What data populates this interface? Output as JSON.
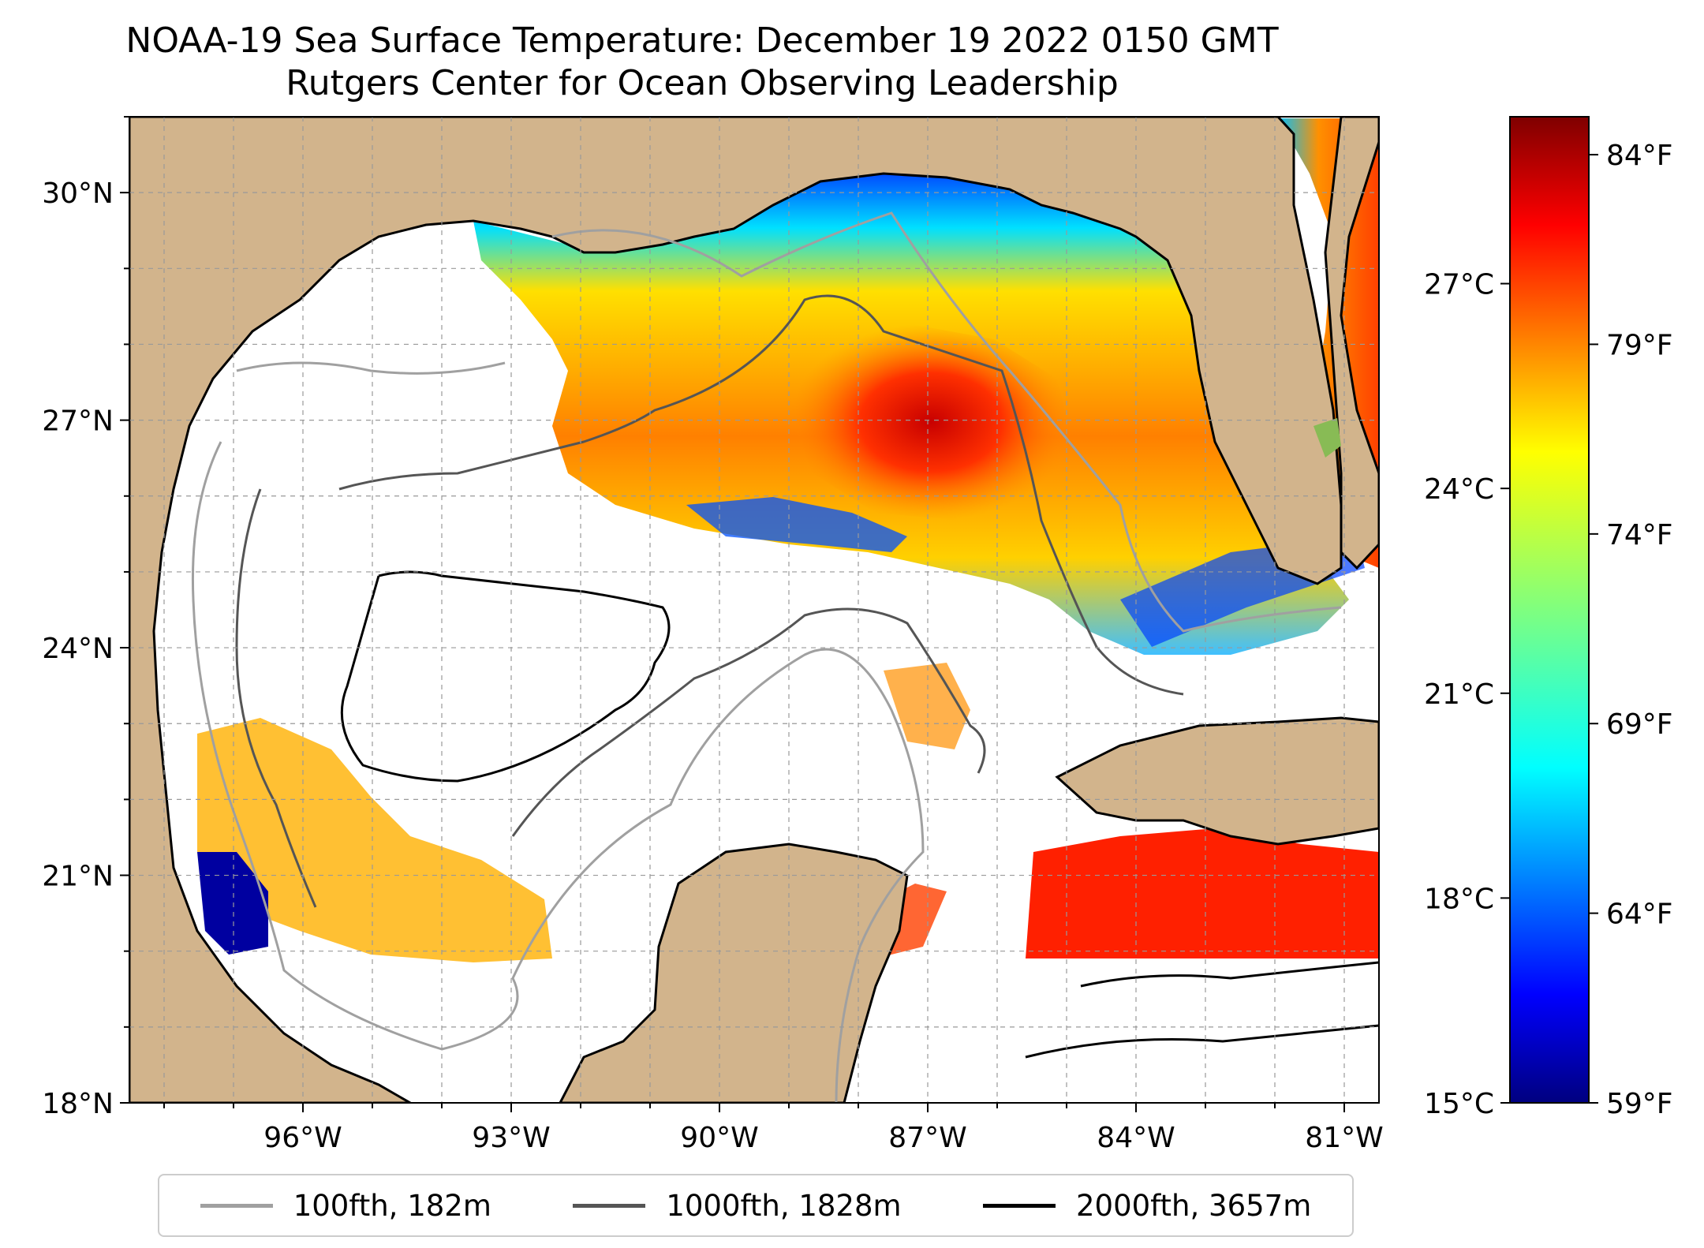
{
  "title_line1": "NOAA-19 Sea Surface Temperature: December 19 2022 0150 GMT",
  "title_line2": "Rutgers Center for Ocean Observing Leadership",
  "map": {
    "lon_range": [
      -98.5,
      -80.5
    ],
    "lat_range": [
      18,
      31
    ],
    "x_ticks": [
      {
        "lon": -96,
        "label": "96°W"
      },
      {
        "lon": -93,
        "label": "93°W"
      },
      {
        "lon": -90,
        "label": "90°W"
      },
      {
        "lon": -87,
        "label": "87°W"
      },
      {
        "lon": -84,
        "label": "84°W"
      },
      {
        "lon": -81,
        "label": "81°W"
      }
    ],
    "y_ticks": [
      {
        "lat": 30,
        "label": "30°N"
      },
      {
        "lat": 27,
        "label": "27°N"
      },
      {
        "lat": 24,
        "label": "24°N"
      },
      {
        "lat": 21,
        "label": "21°N"
      },
      {
        "lat": 18,
        "label": "18°N"
      }
    ],
    "land_color": "#d2b48c",
    "ocean_nodata_color": "#ffffff",
    "gridlines": "dashed grey"
  },
  "colorbar": {
    "colormap": "jet",
    "min_f": 59,
    "max_f": 85,
    "celsius_ticks": [
      {
        "value_c": 27,
        "label": "27°C"
      },
      {
        "value_c": 24,
        "label": "24°C"
      },
      {
        "value_c": 21,
        "label": "21°C"
      },
      {
        "value_c": 18,
        "label": "18°C"
      },
      {
        "value_c": 15,
        "label": "15°C"
      }
    ],
    "fahrenheit_ticks": [
      {
        "value_f": 84,
        "label": "84°F"
      },
      {
        "value_f": 79,
        "label": "79°F"
      },
      {
        "value_f": 74,
        "label": "74°F"
      },
      {
        "value_f": 69,
        "label": "69°F"
      },
      {
        "value_f": 64,
        "label": "64°F"
      },
      {
        "value_f": 59,
        "label": "59°F"
      }
    ]
  },
  "legend": {
    "items": [
      {
        "label": "100fth, 182m",
        "color": "#a0a0a0"
      },
      {
        "label": "1000fth, 1828m",
        "color": "#555555"
      },
      {
        "label": "2000fth, 3657m",
        "color": "#000000"
      }
    ]
  }
}
